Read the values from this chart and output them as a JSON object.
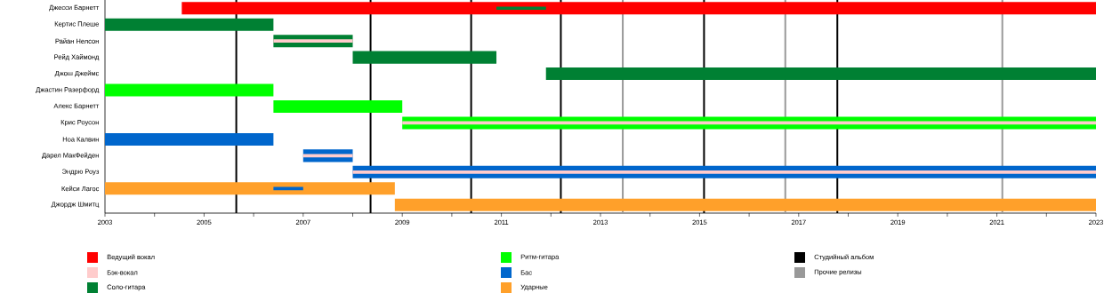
{
  "chart_data": {
    "type": "bar",
    "orientation": "horizontal",
    "categories": [
      "Джесси Барнетт",
      "Кертис Плеше",
      "Райан Нелсон",
      "Рейд Хаймонд",
      "Джош Джеймс",
      "Джастин Разерфорд",
      "Алекс Барнетт",
      "Крис Роусон",
      "Ноа Калвин",
      "Дарел МакФейден",
      "Эндрю Роуз",
      "Кейси Лагос",
      "Джордж Шмитц"
    ],
    "series": [
      {
        "name": "Ведущий вокал",
        "color": "#ff0000",
        "base": [
          2004.55,
          null,
          null,
          null,
          null,
          null,
          null,
          null,
          null,
          null,
          null,
          null,
          null
        ],
        "values": [
          18.45,
          null,
          null,
          null,
          null,
          null,
          null,
          null,
          null,
          null,
          null,
          null,
          null
        ]
      },
      {
        "name": "Бэк-вокал",
        "color": "#ffcccc",
        "base": [
          null,
          null,
          2006.4,
          null,
          null,
          null,
          null,
          2009.0,
          null,
          2007.0,
          2008.0,
          null,
          null
        ],
        "values": [
          null,
          null,
          1.6,
          null,
          null,
          null,
          null,
          14.0,
          null,
          1.0,
          15.0,
          null,
          null
        ]
      },
      {
        "name": "Соло-гитара",
        "color": "#008033",
        "base": [
          2010.9,
          2003,
          2006.4,
          2008.0,
          2011.9,
          null,
          null,
          null,
          null,
          null,
          null,
          null,
          null
        ],
        "values": [
          1.0,
          3.4,
          1.6,
          2.9,
          11.1,
          null,
          null,
          null,
          null,
          null,
          null,
          null,
          null
        ]
      },
      {
        "name": "Ритм-гитара",
        "color": "#00ff00",
        "base": [
          null,
          null,
          null,
          null,
          null,
          2003,
          2006.4,
          2009.0,
          null,
          null,
          null,
          null,
          null
        ],
        "values": [
          null,
          null,
          null,
          null,
          null,
          3.4,
          2.6,
          14.0,
          null,
          null,
          null,
          null,
          null
        ]
      },
      {
        "name": "Бас",
        "color": "#0066cc",
        "base": [
          null,
          null,
          null,
          null,
          null,
          null,
          null,
          null,
          2003,
          2007.0,
          2008.0,
          2006.4,
          null
        ],
        "values": [
          null,
          null,
          null,
          null,
          null,
          null,
          null,
          null,
          3.4,
          1.0,
          15.0,
          0.6,
          null
        ]
      },
      {
        "name": "Ударные",
        "color": "#ffa02a",
        "base": [
          null,
          null,
          null,
          null,
          null,
          null,
          null,
          null,
          null,
          null,
          null,
          2003,
          2008.85
        ],
        "values": [
          null,
          null,
          null,
          null,
          null,
          null,
          null,
          null,
          null,
          null,
          null,
          5.85,
          14.15
        ]
      }
    ],
    "xlim": [
      2003,
      2023
    ],
    "xticks": [
      2003,
      {
        "value": 2004,
        "label": null
      },
      2005,
      {
        "value": 2006,
        "label": null
      },
      2007,
      {
        "value": 2008,
        "label": null
      },
      2009,
      {
        "value": 2010,
        "label": null
      },
      2011,
      {
        "value": 2012,
        "label": null
      },
      2013,
      {
        "value": 2014,
        "label": null
      },
      2015,
      {
        "value": 2016,
        "label": null
      },
      2017,
      {
        "value": 2018,
        "label": null
      },
      2019,
      {
        "value": 2020,
        "label": null
      },
      2021,
      {
        "value": 2022,
        "label": null
      },
      2023
    ],
    "ref_lines": [
      {
        "axis": "x",
        "value": 2005.65,
        "label": "Студийный альбом",
        "color": "#000000"
      },
      {
        "axis": "x",
        "value": 2008.36,
        "color": "#000000"
      },
      {
        "axis": "x",
        "value": 2010.39,
        "color": "#000000"
      },
      {
        "axis": "x",
        "value": 2012.2,
        "color": "#000000"
      },
      {
        "axis": "x",
        "value": 2015.09,
        "color": "#000000"
      },
      {
        "axis": "x",
        "value": 2017.78,
        "color": "#000000"
      },
      {
        "axis": "x",
        "value": 2013.45,
        "label": "Прочие релизы",
        "color": "#999999"
      },
      {
        "axis": "x",
        "value": 2016.73,
        "color": "#999999"
      },
      {
        "axis": "x",
        "value": 2021.11,
        "color": "#999999"
      }
    ],
    "legend": "bottom"
  }
}
